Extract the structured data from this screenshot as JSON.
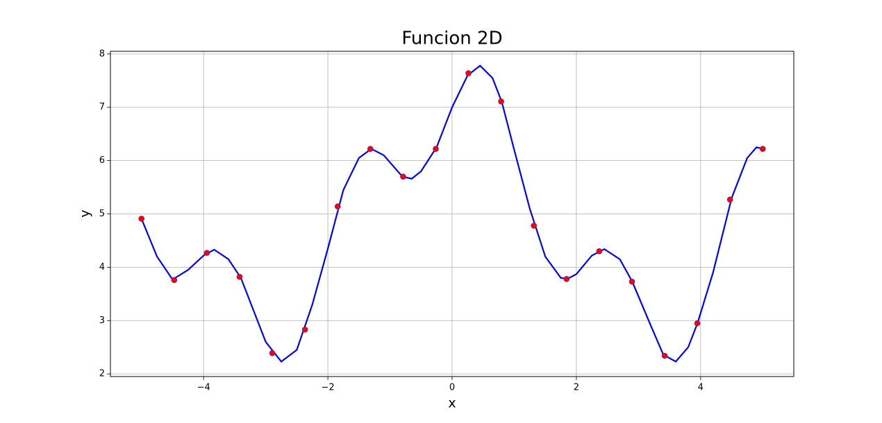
{
  "chart_data": {
    "type": "line",
    "title": "Funcion 2D",
    "x_label": "x",
    "y_label": "y",
    "xlim": [
      -5.5,
      5.5
    ],
    "ylim": [
      1.95,
      8.05
    ],
    "xticks": [
      {
        "value": -4,
        "label": "−4"
      },
      {
        "value": -2,
        "label": "−2"
      },
      0,
      2,
      4
    ],
    "yticks": [
      2,
      3,
      4,
      5,
      6,
      7,
      8
    ],
    "grid": true,
    "series": [
      {
        "type": "line",
        "color": "#0000ff",
        "x": [
          -5,
          -4.75,
          -4.5,
          -4.25,
          -4.0,
          -3.83,
          -3.6,
          -3.4,
          -3.2,
          -3.0,
          -2.75,
          -2.5,
          -2.25,
          -2.0,
          -1.75,
          -1.5,
          -1.3,
          -1.1,
          -0.8,
          -0.65,
          -0.5,
          -0.25,
          0,
          0.25,
          0.45,
          0.65,
          0.8,
          1.0,
          1.25,
          1.5,
          1.75,
          1.85,
          2.0,
          2.25,
          2.45,
          2.7,
          2.9,
          3.2,
          3.4,
          3.6,
          3.8,
          3.95,
          4.2,
          4.5,
          4.75,
          4.9,
          5
        ],
        "values": [
          4.91,
          4.2,
          3.77,
          3.95,
          4.22,
          4.33,
          4.15,
          3.8,
          3.2,
          2.6,
          2.23,
          2.45,
          3.3,
          4.35,
          5.45,
          6.05,
          6.22,
          6.1,
          5.7,
          5.66,
          5.8,
          6.25,
          7.0,
          7.6,
          7.78,
          7.55,
          7.1,
          6.2,
          5.1,
          4.2,
          3.8,
          3.78,
          3.87,
          4.22,
          4.34,
          4.15,
          3.73,
          2.9,
          2.36,
          2.23,
          2.5,
          2.95,
          3.9,
          5.3,
          6.05,
          6.25,
          6.22
        ]
      },
      {
        "type": "scatter",
        "color": "#ff0000",
        "x": [
          -5,
          -4.474,
          -3.947,
          -3.421,
          -2.895,
          -2.368,
          -1.842,
          -1.316,
          -0.789,
          -0.263,
          0.263,
          0.789,
          1.316,
          1.842,
          2.368,
          2.895,
          3.421,
          3.947,
          4.474,
          5
        ],
        "values": [
          4.91,
          3.76,
          4.27,
          3.82,
          2.39,
          2.83,
          5.14,
          6.22,
          5.7,
          6.22,
          7.64,
          7.11,
          4.78,
          3.78,
          4.3,
          3.73,
          2.34,
          2.95,
          5.27,
          6.22
        ]
      }
    ]
  }
}
